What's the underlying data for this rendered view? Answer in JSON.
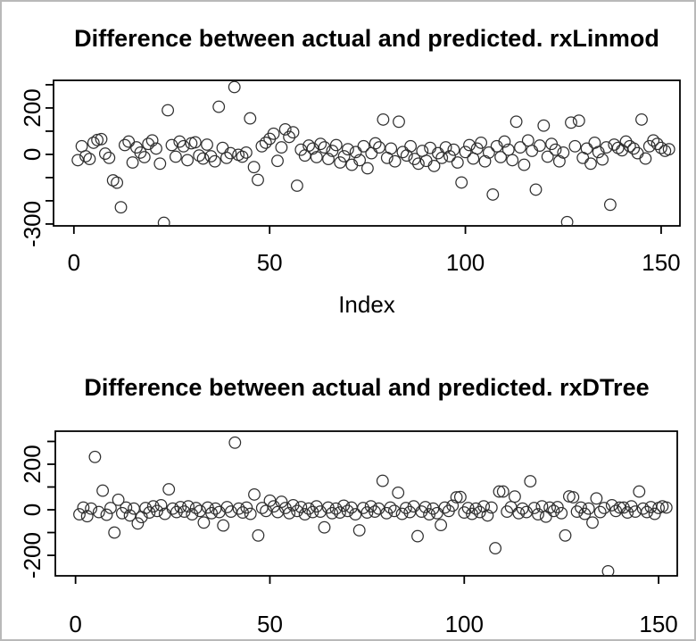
{
  "window": {
    "description": "R graphics device output with two stacked base-R scatter plots",
    "colors": {
      "plot_background": "#ffffff",
      "frame_border": "#b9b9b9",
      "marker_stroke": "#303030",
      "axis_stroke": "#000000",
      "text": "#000000"
    }
  },
  "chart_data": [
    {
      "type": "scatter",
      "title": "Difference between actual and predicted. rxLinmod",
      "xlabel": "Index",
      "ylabel": "",
      "marker": "open-circle",
      "grid": false,
      "legend": null,
      "x_start_index": 1,
      "xlim": [
        -5.2,
        154.8
      ],
      "ylim": [
        -308,
        319
      ],
      "xticks": [
        0,
        50,
        100,
        150
      ],
      "xtick_labels": [
        "0",
        "50",
        "100",
        "150"
      ],
      "yticks": [
        300,
        200,
        100,
        0,
        -100,
        -200,
        -300
      ],
      "ytick_labels": [
        "",
        "200",
        "",
        "0",
        "",
        "",
        "-300"
      ],
      "values": [
        -25,
        35,
        -8,
        -20,
        50,
        62,
        66,
        3,
        -15,
        -112,
        -122,
        -228,
        40,
        55,
        -35,
        30,
        8,
        -12,
        45,
        60,
        25,
        -40,
        -295,
        190,
        40,
        -10,
        55,
        35,
        -25,
        48,
        52,
        -5,
        -18,
        42,
        -8,
        -30,
        205,
        28,
        -15,
        5,
        290,
        -2,
        -10,
        8,
        155,
        -55,
        -110,
        35,
        50,
        67,
        89,
        -28,
        30,
        108,
        75,
        95,
        -135,
        20,
        -5,
        38,
        25,
        -12,
        45,
        30,
        -20,
        15,
        40,
        -35,
        -8,
        22,
        -45,
        10,
        -25,
        35,
        -60,
        5,
        48,
        30,
        150,
        -15,
        25,
        -30,
        141,
        10,
        -5,
        35,
        -20,
        -40,
        15,
        -28,
        28,
        -50,
        5,
        -15,
        30,
        -8,
        20,
        -35,
        -121,
        10,
        40,
        -18,
        25,
        50,
        -30,
        8,
        -173,
        35,
        -12,
        55,
        20,
        -25,
        141,
        30,
        -45,
        60,
        15,
        -152,
        38,
        124,
        -10,
        45,
        20,
        -30,
        8,
        -292,
        137,
        35,
        145,
        -15,
        25,
        -40,
        50,
        10,
        -22,
        30,
        -217,
        42,
        28,
        18,
        55,
        35,
        25,
        5,
        150,
        -18,
        35,
        60,
        45,
        28,
        15,
        22
      ]
    },
    {
      "type": "scatter",
      "title": "Difference between actual and predicted. rxDTree",
      "xlabel": "",
      "ylabel": "",
      "marker": "open-circle",
      "grid": false,
      "legend": null,
      "x_start_index": 1,
      "xlim": [
        -5.2,
        154.8
      ],
      "ylim": [
        -290,
        345
      ],
      "xticks": [
        0,
        50,
        100,
        150
      ],
      "xtick_labels": [
        "0",
        "50",
        "100",
        "150"
      ],
      "yticks": [
        300,
        200,
        100,
        0,
        -100,
        -200
      ],
      "ytick_labels": [
        "",
        "200",
        "",
        "0",
        "",
        "-200"
      ],
      "values": [
        -20,
        10,
        -28,
        5,
        232,
        -10,
        84,
        -22,
        8,
        -100,
        44,
        -15,
        10,
        -25,
        5,
        -60,
        -32,
        8,
        -12,
        15,
        -5,
        20,
        -18,
        90,
        5,
        -10,
        12,
        -8,
        15,
        -20,
        8,
        -5,
        -56,
        10,
        -15,
        5,
        -10,
        -69,
        12,
        -8,
        295,
        5,
        -12,
        10,
        -18,
        67,
        -113,
        8,
        -5,
        40,
        15,
        -10,
        35,
        8,
        -15,
        20,
        -5,
        12,
        -20,
        5,
        -10,
        15,
        -8,
        -77,
        10,
        -15,
        5,
        -12,
        18,
        -5,
        10,
        -20,
        -90,
        8,
        -12,
        15,
        -8,
        5,
        127,
        -15,
        10,
        -5,
        75,
        -18,
        8,
        -10,
        15,
        -116,
        -8,
        12,
        -20,
        5,
        -15,
        -67,
        10,
        -5,
        18,
        55,
        56,
        -12,
        8,
        -18,
        5,
        -10,
        15,
        -25,
        10,
        -169,
        80,
        80,
        -8,
        12,
        58,
        -15,
        5,
        -10,
        125,
        8,
        -20,
        15,
        -30,
        10,
        -5,
        12,
        -15,
        -113,
        59,
        55,
        -8,
        10,
        -18,
        5,
        -56,
        50,
        -10,
        8,
        -270,
        20,
        -5,
        10,
        10,
        -12,
        15,
        -8,
        80,
        5,
        -10,
        12,
        -18,
        8,
        15,
        10
      ]
    }
  ]
}
